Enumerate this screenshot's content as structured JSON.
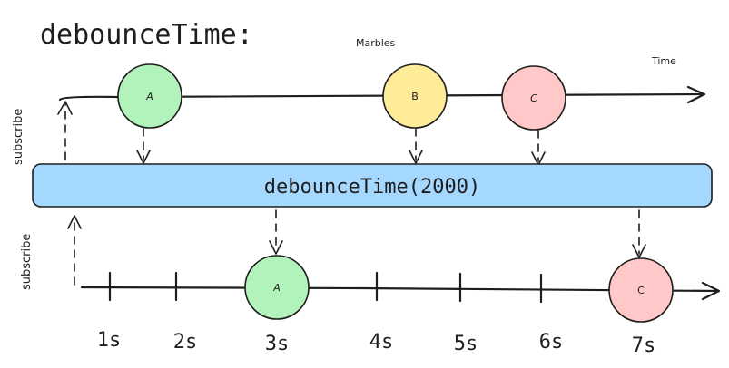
{
  "title": "debounceTime:",
  "header_label": "Marbles",
  "time_label": "Time",
  "operator_label": "debounceTime(2000)",
  "subscribe_label": "subscribe",
  "input_marbles": [
    {
      "label": "A",
      "color": "#b2f2bb"
    },
    {
      "label": "B",
      "color": "#ffec99"
    },
    {
      "label": "C",
      "color": "#ffc9c9"
    }
  ],
  "output_marbles": [
    {
      "label": "A",
      "color": "#b2f2bb"
    },
    {
      "label": "C",
      "color": "#ffc9c9"
    }
  ],
  "ticks": [
    "1s",
    "2s",
    "3s",
    "4s",
    "5s",
    "6s",
    "7s"
  ],
  "colors": {
    "operator_fill": "#a5d8ff",
    "operator_stroke": "#1e1e1e",
    "stroke": "#1e1e1e"
  }
}
